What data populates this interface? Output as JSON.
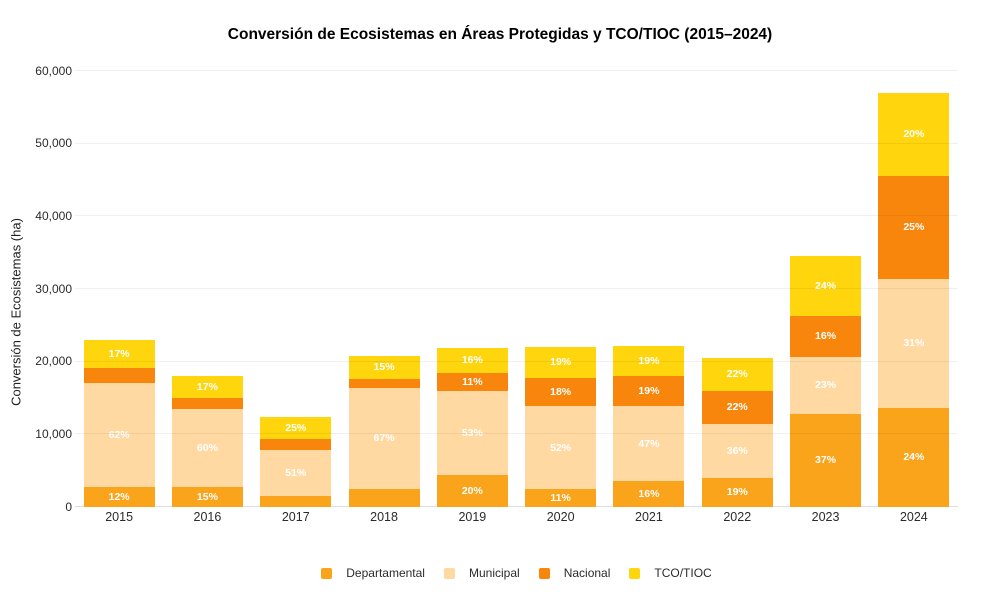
{
  "chart_data": {
    "type": "bar",
    "stacked": true,
    "title": "Conversión de Ecosistemas en Áreas Protegidas y TCO/TIOC (2015–2024)",
    "xlabel": "",
    "ylabel": "Conversión de Ecosistemas (ha)",
    "ylim": [
      0,
      60000
    ],
    "yticks": [
      0,
      10000,
      20000,
      30000,
      40000,
      50000,
      60000
    ],
    "ytick_labels": [
      "0",
      "10,000",
      "20,000",
      "30,000",
      "40,000",
      "50,000",
      "60,000"
    ],
    "grid": true,
    "legend_position": "bottom",
    "categories": [
      "2015",
      "2016",
      "2017",
      "2018",
      "2019",
      "2020",
      "2021",
      "2022",
      "2023",
      "2024"
    ],
    "totals_ha": [
      23000,
      18000,
      12400,
      20800,
      21900,
      22000,
      22200,
      20500,
      34500,
      57000
    ],
    "series": [
      {
        "name": "Departamental",
        "color": "#FAA41B",
        "pct": [
          12,
          15,
          12,
          12,
          20,
          11,
          16,
          19,
          37,
          24
        ],
        "labels": [
          "12%",
          "15%",
          null,
          null,
          "20%",
          "11%",
          "16%",
          "19%",
          "37%",
          "24%"
        ]
      },
      {
        "name": "Municipal",
        "color": "#FFD9A1",
        "pct": [
          62,
          60,
          51,
          67,
          53,
          52,
          47,
          36,
          23,
          31
        ],
        "labels": [
          "62%",
          "60%",
          "51%",
          "67%",
          "53%",
          "52%",
          "47%",
          "36%",
          "23%",
          "31%"
        ]
      },
      {
        "name": "Nacional",
        "color": "#F8860D",
        "pct": [
          9,
          8,
          12,
          6,
          11,
          18,
          19,
          22,
          16,
          25
        ],
        "labels": [
          null,
          null,
          null,
          null,
          "11%",
          "18%",
          "19%",
          "22%",
          "16%",
          "25%"
        ]
      },
      {
        "name": "TCO/TIOC",
        "color": "#FFD60E",
        "pct": [
          17,
          17,
          25,
          15,
          16,
          19,
          19,
          22,
          24,
          20
        ],
        "labels": [
          "17%",
          "17%",
          "25%",
          "15%",
          "16%",
          "19%",
          "19%",
          "22%",
          "24%",
          "20%"
        ]
      }
    ]
  }
}
